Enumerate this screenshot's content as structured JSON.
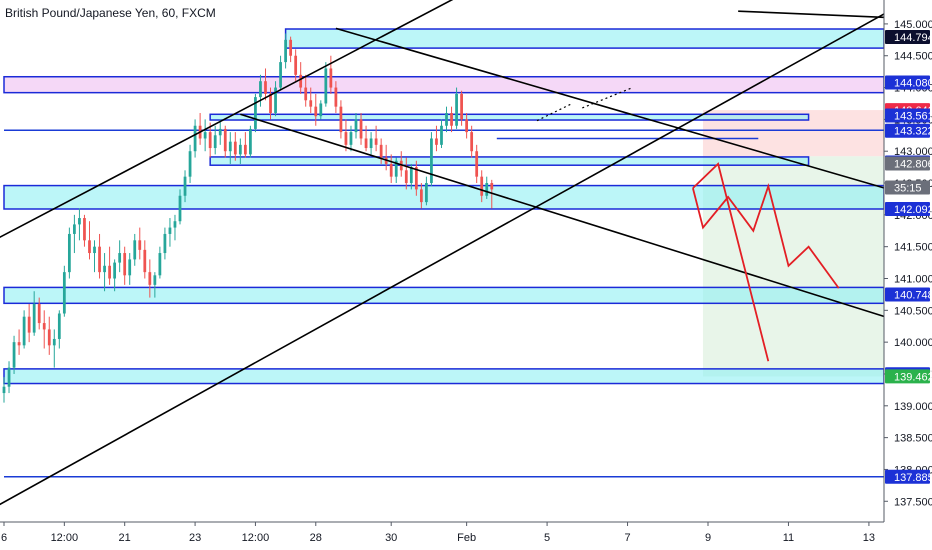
{
  "chart_data": {
    "type": "candlestick",
    "title": "British Pound/Japanese Yen, 60, FXCM",
    "symbol": "British Pound/Japanese Yen",
    "interval": "60",
    "source": "FXCM",
    "colors": {
      "up": "#26a69a",
      "down": "#ef5350",
      "zone_fill": "#8ff0f3",
      "zone_border": "#1b2ad8",
      "purple_fill": "#ecb8f0",
      "level_line": "#1a3bd6",
      "label_blue": "#1c31d6",
      "label_red": "#ef2a47",
      "label_gray": "#6b6f7a",
      "label_green": "#2bb24c",
      "projection": "#e31e24",
      "trend": "#000000",
      "target_fill": "#e8f5e9",
      "stop_fill": "#fde2e2"
    },
    "y_axis": {
      "ylim": [
        137.3,
        145.25
      ],
      "ticks": [
        "145.000",
        "144.500",
        "144.000",
        "143.500",
        "143.000",
        "142.500",
        "142.000",
        "141.500",
        "141.000",
        "140.500",
        "140.000",
        "139.500",
        "139.000",
        "138.500",
        "138.000",
        "137.500"
      ],
      "tick_values": [
        145.0,
        144.5,
        144.0,
        143.5,
        143.0,
        142.5,
        142.0,
        141.5,
        141.0,
        140.5,
        140.0,
        139.5,
        139.0,
        138.5,
        138.0,
        137.5
      ]
    },
    "x_axis": {
      "ticks": [
        "6",
        "12:00",
        "21",
        "23",
        "12:00",
        "28",
        "30",
        "Feb",
        "5",
        "7",
        "9",
        "11",
        "13"
      ],
      "tick_index": [
        0,
        12,
        24,
        38,
        50,
        62,
        77,
        92,
        108,
        124,
        140,
        156,
        172
      ]
    },
    "price_labels": [
      {
        "text": "144.794",
        "value": 144.794,
        "style": "dark"
      },
      {
        "text": "144.080",
        "value": 144.08,
        "style": "blue"
      },
      {
        "text": "143.646",
        "value": 143.646,
        "style": "red"
      },
      {
        "text": "143.561",
        "value": 143.561,
        "style": "blue"
      },
      {
        "text": "143.322",
        "value": 143.322,
        "style": "blue"
      },
      {
        "text": "142.822",
        "value": 142.822,
        "style": "blue"
      },
      {
        "text": "142.806",
        "value": 142.806,
        "style": "gray"
      },
      {
        "text": "35:15",
        "value": 142.43,
        "style": "gray"
      },
      {
        "text": "142.092",
        "value": 142.092,
        "style": "blue"
      },
      {
        "text": "140.748",
        "value": 140.748,
        "style": "blue"
      },
      {
        "text": "139.496",
        "value": 139.496,
        "style": "blue"
      },
      {
        "text": "139.462",
        "value": 139.462,
        "style": "green"
      },
      {
        "text": "137.885",
        "value": 137.885,
        "style": "blue"
      }
    ],
    "zones": [
      {
        "x0": 56,
        "x1": 175,
        "y_low": 144.62,
        "y_high": 144.92,
        "fill": "cyan"
      },
      {
        "x0": 0,
        "x1": 175,
        "y_low": 143.92,
        "y_high": 144.17,
        "fill": "purple"
      },
      {
        "x0": 41,
        "x1": 160,
        "y_low": 143.49,
        "y_high": 143.58,
        "fill": "cyan"
      },
      {
        "x0": 41,
        "x1": 160,
        "y_low": 142.78,
        "y_high": 142.91,
        "fill": "cyan"
      },
      {
        "x0": 0,
        "x1": 175,
        "y_low": 142.092,
        "y_high": 142.46,
        "fill": "cyan"
      },
      {
        "x0": 0,
        "x1": 175,
        "y_low": 140.61,
        "y_high": 140.86,
        "fill": "cyan"
      },
      {
        "x0": 0,
        "x1": 175,
        "y_low": 139.35,
        "y_high": 139.58,
        "fill": "cyan"
      }
    ],
    "levels": [
      {
        "x0": 0,
        "x1": 175,
        "value": 143.33
      },
      {
        "x0": 98,
        "x1": 150,
        "value": 143.2
      },
      {
        "x0": 0,
        "x1": 175,
        "value": 137.885
      }
    ],
    "position": {
      "x0": 139,
      "x1": 175,
      "entry": 142.92,
      "stop": 143.646,
      "target": 139.462
    },
    "trendlines": [
      {
        "x0": -2,
        "y0": 141.6,
        "x1": 92,
        "y1": 145.5
      },
      {
        "x0": -2,
        "y0": 137.4,
        "x1": 176,
        "y1": 145.2
      },
      {
        "x0": 146,
        "y0": 145.2,
        "x1": 176,
        "y1": 145.1
      },
      {
        "x0": 66,
        "y0": 144.93,
        "x1": 176,
        "y1": 142.4
      },
      {
        "x0": 47,
        "y0": 143.58,
        "x1": 176,
        "y1": 140.38
      }
    ],
    "dotted_lines": [
      {
        "x0": 106,
        "y0": 143.48,
        "x1": 113,
        "y1": 143.75
      },
      {
        "x0": 115,
        "y0": 143.68,
        "x1": 125,
        "y1": 144.0
      }
    ],
    "projections": [
      [
        [
          137,
          142.42
        ],
        [
          139,
          141.8
        ],
        [
          144,
          142.28
        ],
        [
          149,
          141.75
        ],
        [
          152,
          142.45
        ],
        [
          156,
          141.2
        ],
        [
          160,
          141.5
        ],
        [
          166,
          140.85
        ]
      ],
      [
        [
          137,
          142.42
        ],
        [
          142,
          142.8
        ],
        [
          152,
          139.7
        ]
      ]
    ],
    "candles_ohlc": [
      [
        139.2,
        139.45,
        139.05,
        139.3
      ],
      [
        139.3,
        139.7,
        139.2,
        139.6
      ],
      [
        139.6,
        140.1,
        139.5,
        140.0
      ],
      [
        140.0,
        140.2,
        139.8,
        139.95
      ],
      [
        139.95,
        140.5,
        139.9,
        140.4
      ],
      [
        140.4,
        140.6,
        140.0,
        140.15
      ],
      [
        140.15,
        140.8,
        140.1,
        140.6
      ],
      [
        140.6,
        140.7,
        140.2,
        140.3
      ],
      [
        140.3,
        140.5,
        139.9,
        140.2
      ],
      [
        140.2,
        140.4,
        139.8,
        139.95
      ],
      [
        139.95,
        140.2,
        139.6,
        140.05
      ],
      [
        140.05,
        140.5,
        139.9,
        140.45
      ],
      [
        140.45,
        141.2,
        140.4,
        141.1
      ],
      [
        141.1,
        141.8,
        141.0,
        141.7
      ],
      [
        141.7,
        142.0,
        141.4,
        141.85
      ],
      [
        141.85,
        142.1,
        141.6,
        141.95
      ],
      [
        141.95,
        142.0,
        141.5,
        141.6
      ],
      [
        141.6,
        141.9,
        141.3,
        141.4
      ],
      [
        141.4,
        141.6,
        141.1,
        141.5
      ],
      [
        141.5,
        141.7,
        141.0,
        141.1
      ],
      [
        141.1,
        141.4,
        140.8,
        141.2
      ],
      [
        141.2,
        141.5,
        140.9,
        141.0
      ],
      [
        141.0,
        141.3,
        140.8,
        141.25
      ],
      [
        141.25,
        141.6,
        141.1,
        141.4
      ],
      [
        141.4,
        141.5,
        140.9,
        141.05
      ],
      [
        141.05,
        141.4,
        140.9,
        141.3
      ],
      [
        141.3,
        141.7,
        141.2,
        141.6
      ],
      [
        141.6,
        141.8,
        141.3,
        141.45
      ],
      [
        141.45,
        141.6,
        141.0,
        141.1
      ],
      [
        141.1,
        141.3,
        140.7,
        140.9
      ],
      [
        140.9,
        141.1,
        140.7,
        141.05
      ],
      [
        141.05,
        141.5,
        141.0,
        141.4
      ],
      [
        141.4,
        141.8,
        141.3,
        141.7
      ],
      [
        141.7,
        141.95,
        141.5,
        141.8
      ],
      [
        141.8,
        142.0,
        141.6,
        141.9
      ],
      [
        141.9,
        142.4,
        141.85,
        142.3
      ],
      [
        142.3,
        142.7,
        142.2,
        142.6
      ],
      [
        142.6,
        143.1,
        142.5,
        143.0
      ],
      [
        143.0,
        143.5,
        142.9,
        143.4
      ],
      [
        143.4,
        143.6,
        143.1,
        143.2
      ],
      [
        143.2,
        143.5,
        143.0,
        143.3
      ],
      [
        143.3,
        143.45,
        142.9,
        143.05
      ],
      [
        143.05,
        143.4,
        142.95,
        143.25
      ],
      [
        143.25,
        143.5,
        143.1,
        143.35
      ],
      [
        143.35,
        143.4,
        142.9,
        143.0
      ],
      [
        143.0,
        143.3,
        142.8,
        143.15
      ],
      [
        143.15,
        143.3,
        142.85,
        142.95
      ],
      [
        142.95,
        143.2,
        142.8,
        143.1
      ],
      [
        143.1,
        143.3,
        142.9,
        142.95
      ],
      [
        142.95,
        143.4,
        142.9,
        143.35
      ],
      [
        143.35,
        143.9,
        143.3,
        143.85
      ],
      [
        143.85,
        144.2,
        143.7,
        144.1
      ],
      [
        144.1,
        144.3,
        143.8,
        143.9
      ],
      [
        143.9,
        144.0,
        143.5,
        143.6
      ],
      [
        143.6,
        144.1,
        143.55,
        144.0
      ],
      [
        144.0,
        144.5,
        143.95,
        144.4
      ],
      [
        144.4,
        144.85,
        144.3,
        144.75
      ],
      [
        144.75,
        144.8,
        144.4,
        144.5
      ],
      [
        144.5,
        144.6,
        144.1,
        144.2
      ],
      [
        144.2,
        144.4,
        143.9,
        144.0
      ],
      [
        144.0,
        144.2,
        143.7,
        143.8
      ],
      [
        143.8,
        144.0,
        143.6,
        143.7
      ],
      [
        143.7,
        143.9,
        143.4,
        143.55
      ],
      [
        143.55,
        143.8,
        143.5,
        143.75
      ],
      [
        143.75,
        144.4,
        143.7,
        144.3
      ],
      [
        144.3,
        144.5,
        143.9,
        144.0
      ],
      [
        144.0,
        144.1,
        143.6,
        143.7
      ],
      [
        143.7,
        143.8,
        143.2,
        143.3
      ],
      [
        143.3,
        143.5,
        143.0,
        143.1
      ],
      [
        143.1,
        143.4,
        143.0,
        143.3
      ],
      [
        143.3,
        143.6,
        143.2,
        143.5
      ],
      [
        143.5,
        143.6,
        143.1,
        143.2
      ],
      [
        143.2,
        143.4,
        143.0,
        143.05
      ],
      [
        143.05,
        143.3,
        142.95,
        143.2
      ],
      [
        143.2,
        143.4,
        143.0,
        143.1
      ],
      [
        143.1,
        143.2,
        142.8,
        142.9
      ],
      [
        142.9,
        143.1,
        142.7,
        142.8
      ],
      [
        142.8,
        142.95,
        142.5,
        142.6
      ],
      [
        142.6,
        142.9,
        142.5,
        142.85
      ],
      [
        142.85,
        143.0,
        142.6,
        142.7
      ],
      [
        142.7,
        142.9,
        142.4,
        142.5
      ],
      [
        142.5,
        142.8,
        142.4,
        142.75
      ],
      [
        142.75,
        142.85,
        142.3,
        142.4
      ],
      [
        142.4,
        142.5,
        142.1,
        142.2
      ],
      [
        142.2,
        142.6,
        142.15,
        142.5
      ],
      [
        142.5,
        143.3,
        142.45,
        143.2
      ],
      [
        143.2,
        143.4,
        143.0,
        143.1
      ],
      [
        143.1,
        143.5,
        143.05,
        143.4
      ],
      [
        143.4,
        143.7,
        143.3,
        143.6
      ],
      [
        143.6,
        143.7,
        143.3,
        143.4
      ],
      [
        143.4,
        144.0,
        143.35,
        143.9
      ],
      [
        143.9,
        143.95,
        143.4,
        143.5
      ],
      [
        143.5,
        143.6,
        143.2,
        143.3
      ],
      [
        143.3,
        143.4,
        142.9,
        143.0
      ],
      [
        143.0,
        143.1,
        142.5,
        142.6
      ],
      [
        142.6,
        142.7,
        142.2,
        142.3
      ],
      [
        142.3,
        142.6,
        142.25,
        142.5
      ],
      [
        142.5,
        142.55,
        142.1,
        142.4
      ]
    ],
    "candle_x_start": 0,
    "candle_count_note": "hourly candles"
  }
}
